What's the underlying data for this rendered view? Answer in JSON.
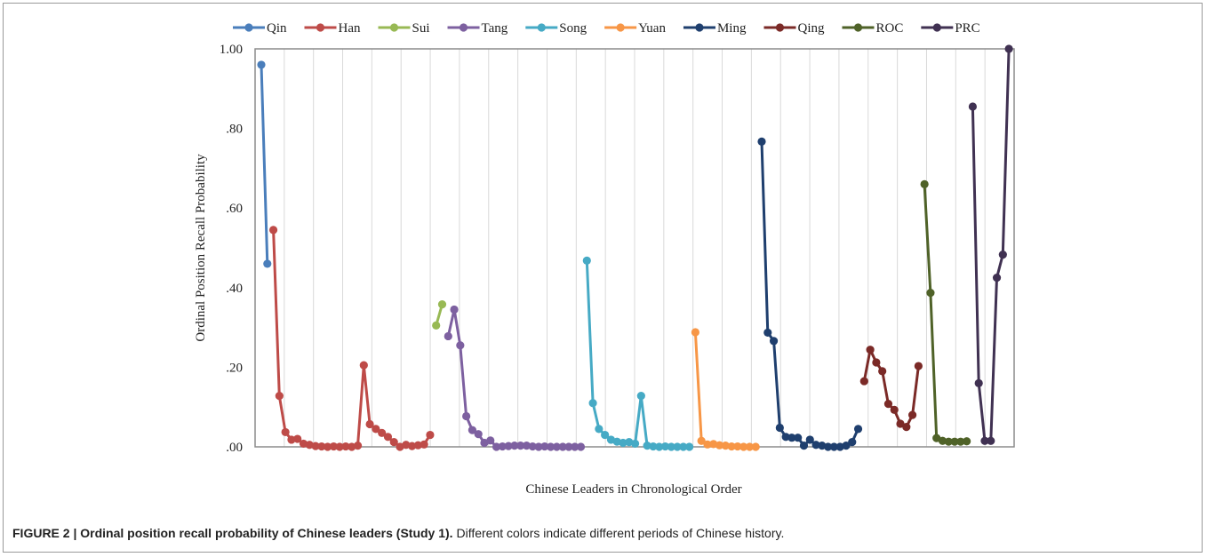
{
  "caption": {
    "label": "FIGURE 2 | Ordinal position recall probability of Chinese leaders (Study 1).",
    "text": " Different colors indicate different periods of Chinese history."
  },
  "chart_data": {
    "type": "line",
    "title": "",
    "xlabel": "Chinese Leaders in Chronological Order",
    "ylabel": "Ordinal Position Recall Probability",
    "ylim": [
      0,
      1
    ],
    "yticks": [
      ".00",
      ".20",
      ".40",
      ".60",
      ".80",
      "1.00"
    ],
    "ytick_values": [
      0,
      0.2,
      0.4,
      0.6,
      0.8,
      1.0
    ],
    "grid": "vertical",
    "legend": "top",
    "series": [
      {
        "name": "Qin",
        "color": "#4a7ebb",
        "x": [
          1,
          2
        ],
        "values": [
          0.96,
          0.46
        ]
      },
      {
        "name": "Han",
        "color": "#be4b48",
        "x": [
          3,
          4,
          5,
          6,
          7,
          8,
          9,
          10,
          11,
          12,
          13,
          14,
          15,
          16,
          17,
          18,
          19,
          20,
          21,
          22,
          23,
          24,
          25,
          26,
          27,
          28,
          29
        ],
        "values": [
          0.545,
          0.128,
          0.037,
          0.018,
          0.02,
          0.008,
          0.005,
          0.002,
          0.001,
          0.0,
          0.001,
          0.0,
          0.001,
          0.0,
          0.003,
          0.205,
          0.057,
          0.045,
          0.035,
          0.025,
          0.012,
          0.0,
          0.005,
          0.002,
          0.004,
          0.006,
          0.03
        ]
      },
      {
        "name": "Sui",
        "color": "#98b954",
        "x": [
          30,
          31
        ],
        "values": [
          0.305,
          0.358
        ]
      },
      {
        "name": "Tang",
        "color": "#7d60a0",
        "x": [
          32,
          33,
          34,
          35,
          36,
          37,
          38,
          39,
          40,
          41,
          42,
          43,
          44,
          45,
          46,
          47,
          48,
          49,
          50,
          51,
          52,
          53,
          54
        ],
        "values": [
          0.278,
          0.345,
          0.255,
          0.077,
          0.042,
          0.032,
          0.01,
          0.016,
          0.0,
          0.001,
          0.002,
          0.003,
          0.003,
          0.003,
          0.001,
          0.0,
          0.001,
          0.0,
          0.0,
          0.0,
          0.0,
          0.0,
          0.0
        ]
      },
      {
        "name": "Song",
        "color": "#46aac5",
        "x": [
          55,
          56,
          57,
          58,
          59,
          60,
          61,
          62,
          63,
          64,
          65,
          66,
          67,
          68,
          69,
          70,
          71,
          72
        ],
        "values": [
          0.468,
          0.11,
          0.045,
          0.03,
          0.018,
          0.013,
          0.01,
          0.012,
          0.008,
          0.128,
          0.003,
          0.001,
          0.0,
          0.001,
          0.0,
          0.0,
          0.0,
          0.0
        ]
      },
      {
        "name": "Yuan",
        "color": "#f79646",
        "x": [
          73,
          74,
          75,
          76,
          77,
          78,
          79,
          80,
          81,
          82,
          83
        ],
        "values": [
          0.288,
          0.015,
          0.006,
          0.007,
          0.004,
          0.003,
          0.001,
          0.001,
          0.0,
          0.0,
          0.0
        ]
      },
      {
        "name": "Ming",
        "color": "#1f3f6e",
        "x": [
          84,
          85,
          86,
          87,
          88,
          89,
          90,
          91,
          92,
          93,
          94,
          95,
          96,
          97,
          98,
          99,
          100
        ],
        "values": [
          0.767,
          0.287,
          0.266,
          0.048,
          0.025,
          0.023,
          0.023,
          0.003,
          0.018,
          0.005,
          0.003,
          0.0,
          0.0,
          0.0,
          0.003,
          0.012,
          0.045
        ]
      },
      {
        "name": "Qing",
        "color": "#7b2a27",
        "x": [
          101,
          102,
          103,
          104,
          105,
          106,
          107,
          108,
          109,
          110
        ],
        "values": [
          0.165,
          0.244,
          0.212,
          0.19,
          0.108,
          0.093,
          0.058,
          0.05,
          0.08,
          0.203
        ]
      },
      {
        "name": "ROC",
        "color": "#4f6228",
        "x": [
          111,
          112,
          113,
          114,
          115,
          116,
          117,
          118
        ],
        "values": [
          0.66,
          0.387,
          0.022,
          0.015,
          0.013,
          0.013,
          0.013,
          0.014
        ]
      },
      {
        "name": "PRC",
        "color": "#403152",
        "x": [
          119,
          120,
          121,
          122,
          123,
          124,
          125
        ],
        "values": [
          0.855,
          0.16,
          0.015,
          0.015,
          0.425,
          0.483,
          1.0
        ]
      }
    ]
  }
}
